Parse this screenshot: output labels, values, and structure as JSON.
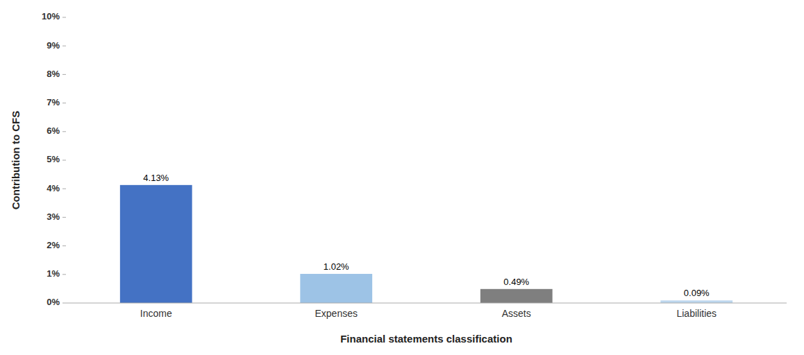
{
  "chart_data": {
    "type": "bar",
    "categories": [
      "Income",
      "Expenses",
      "Assets",
      "Liabilities"
    ],
    "values": [
      4.13,
      1.02,
      0.49,
      0.09
    ],
    "value_labels": [
      "4.13%",
      "1.02%",
      "0.49%",
      "0.09%"
    ],
    "data_labels": true,
    "colors": [
      "#4472C4",
      "#9DC3E6",
      "#7F7F7F",
      "#BDD7EE"
    ],
    "xlabel": "Financial statements classification",
    "ylabel": "Contribution to CFS",
    "ylim": [
      0,
      10
    ],
    "yticks": [
      {
        "value": 0,
        "label": "0%"
      },
      {
        "value": 1,
        "label": "1%"
      },
      {
        "value": 2,
        "label": "2%"
      },
      {
        "value": 3,
        "label": "3%"
      },
      {
        "value": 4,
        "label": "4%"
      },
      {
        "value": 5,
        "label": "5%"
      },
      {
        "value": 6,
        "label": "6%"
      },
      {
        "value": 7,
        "label": "7%"
      },
      {
        "value": 8,
        "label": "8%"
      },
      {
        "value": 9,
        "label": "9%"
      },
      {
        "value": 10,
        "label": "10%"
      }
    ],
    "grid": false
  }
}
